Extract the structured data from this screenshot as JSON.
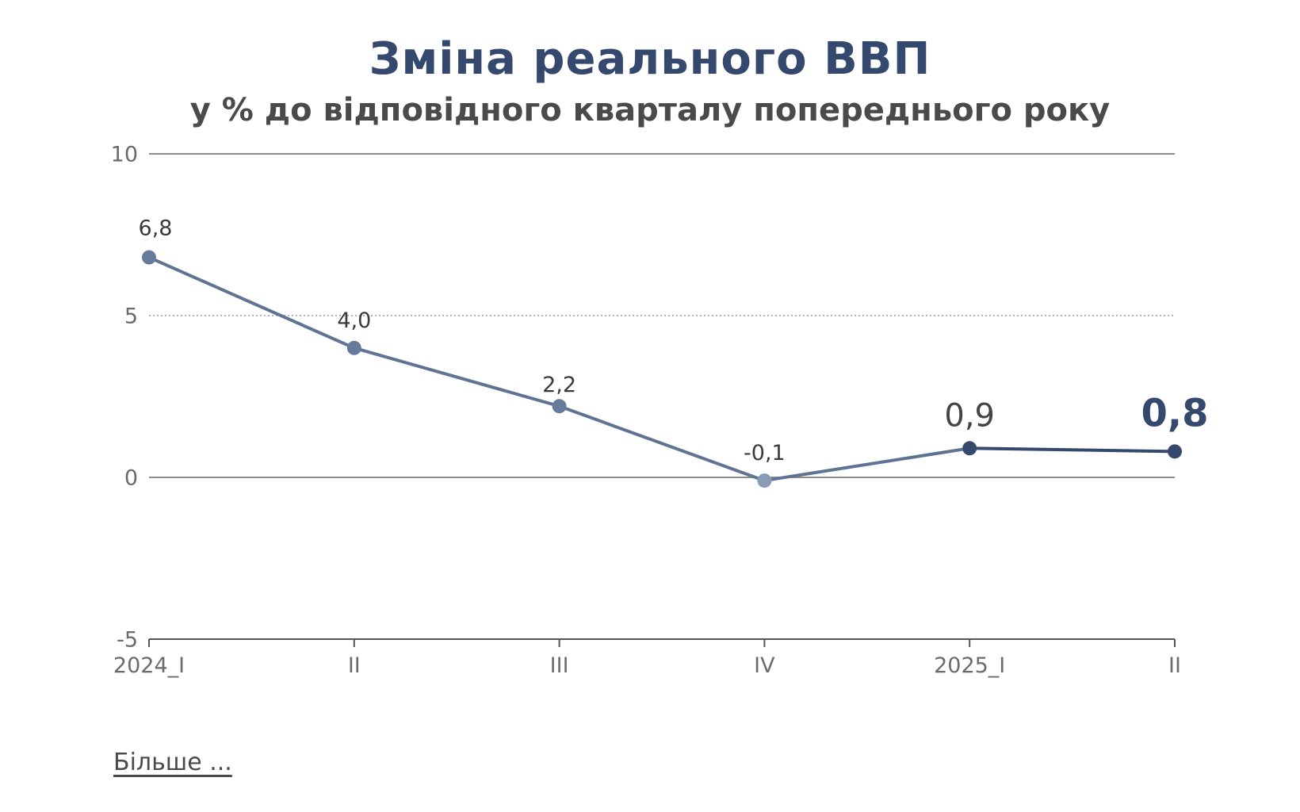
{
  "chart_data": {
    "type": "line",
    "title": "Зміна реального ВВП",
    "subtitle": "у % до відповідного кварталу попереднього року",
    "categories": [
      "2024_I",
      "II",
      "III",
      "IV",
      "2025_I",
      "II"
    ],
    "series": [
      {
        "values": [
          6.8,
          4.0,
          2.2,
          -0.1,
          0.9,
          0.8
        ],
        "labels": [
          "6,8",
          "4,0",
          "2,2",
          "-0,1",
          "0,9",
          "0,8"
        ]
      }
    ],
    "ylim": [
      -5,
      10
    ],
    "yticks": [
      10,
      5,
      0,
      -5
    ],
    "ytick_labels": [
      "10",
      "5",
      "0",
      "-5"
    ],
    "grid": true,
    "colors": {
      "line_2024": "#5f7493",
      "line_2025": "#34496d",
      "point_2024": "#667b9b",
      "point_iv": "#8a9bb5",
      "point_2025": "#34496d",
      "grid": "#8c8c8c",
      "axis_text": "#6b6b6b",
      "label_text": "#3a3a3a"
    }
  },
  "footer": {
    "more_label": "Більше ..."
  }
}
